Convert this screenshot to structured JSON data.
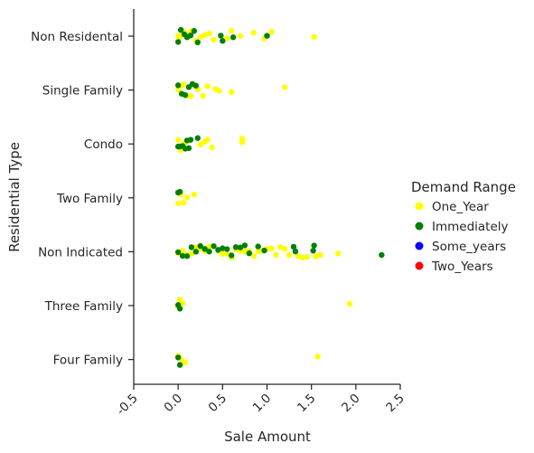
{
  "chart_data": {
    "type": "scatter",
    "style": "strip",
    "title": "",
    "xlabel": "Sale Amount",
    "ylabel": "Residential Type",
    "xlim": [
      -0.5,
      2.5
    ],
    "xticks": [
      "-0.5",
      "0.0",
      "0.5",
      "1.0",
      "1.5",
      "2.0",
      "2.5"
    ],
    "categories": [
      "Non Residental",
      "Single Family",
      "Condo",
      "Two Family",
      "Non Indicated",
      "Three Family",
      "Four Family"
    ],
    "grid": false,
    "legend": {
      "title": "Demand Range",
      "placement": "right",
      "entries": [
        "One_Year",
        "Immediately",
        "Some_years",
        "Two_Years"
      ]
    },
    "colors": {
      "One_Year": "#ffff00",
      "Immediately": "#008000",
      "Some_years": "#0000ff",
      "Two_Years": "#ff0000"
    },
    "series": [
      {
        "name": "One_Year",
        "points": [
          [
            "Non Residental",
            0.0
          ],
          [
            "Non Residental",
            0.02
          ],
          [
            "Non Residental",
            0.05
          ],
          [
            "Non Residental",
            0.08
          ],
          [
            "Non Residental",
            0.1
          ],
          [
            "Non Residental",
            0.12
          ],
          [
            "Non Residental",
            0.15
          ],
          [
            "Non Residental",
            0.2
          ],
          [
            "Non Residental",
            0.25
          ],
          [
            "Non Residental",
            0.3
          ],
          [
            "Non Residental",
            0.35
          ],
          [
            "Non Residental",
            0.4
          ],
          [
            "Non Residental",
            0.55
          ],
          [
            "Non Residental",
            0.6
          ],
          [
            "Non Residental",
            0.7
          ],
          [
            "Non Residental",
            0.85
          ],
          [
            "Non Residental",
            0.97
          ],
          [
            "Non Residental",
            1.05
          ],
          [
            "Non Residental",
            1.53
          ],
          [
            "Single Family",
            0.0
          ],
          [
            "Single Family",
            0.03
          ],
          [
            "Single Family",
            0.06
          ],
          [
            "Single Family",
            0.1
          ],
          [
            "Single Family",
            0.14
          ],
          [
            "Single Family",
            0.18
          ],
          [
            "Single Family",
            0.22
          ],
          [
            "Single Family",
            0.28
          ],
          [
            "Single Family",
            0.33
          ],
          [
            "Single Family",
            0.42
          ],
          [
            "Single Family",
            0.46
          ],
          [
            "Single Family",
            0.6
          ],
          [
            "Single Family",
            1.2
          ],
          [
            "Condo",
            0.0
          ],
          [
            "Condo",
            0.03
          ],
          [
            "Condo",
            0.07
          ],
          [
            "Condo",
            0.12
          ],
          [
            "Condo",
            0.25
          ],
          [
            "Condo",
            0.3
          ],
          [
            "Condo",
            0.33
          ],
          [
            "Condo",
            0.38
          ],
          [
            "Condo",
            0.72
          ],
          [
            "Condo",
            0.72
          ],
          [
            "Condo",
            0.72
          ],
          [
            "Two Family",
            0.0
          ],
          [
            "Two Family",
            0.03
          ],
          [
            "Two Family",
            0.06
          ],
          [
            "Two Family",
            0.1
          ],
          [
            "Two Family",
            0.18
          ],
          [
            "Non Indicated",
            0.0
          ],
          [
            "Non Indicated",
            0.05
          ],
          [
            "Non Indicated",
            0.1
          ],
          [
            "Non Indicated",
            0.15
          ],
          [
            "Non Indicated",
            0.2
          ],
          [
            "Non Indicated",
            0.25
          ],
          [
            "Non Indicated",
            0.3
          ],
          [
            "Non Indicated",
            0.35
          ],
          [
            "Non Indicated",
            0.4
          ],
          [
            "Non Indicated",
            0.45
          ],
          [
            "Non Indicated",
            0.5
          ],
          [
            "Non Indicated",
            0.55
          ],
          [
            "Non Indicated",
            0.6
          ],
          [
            "Non Indicated",
            0.65
          ],
          [
            "Non Indicated",
            0.7
          ],
          [
            "Non Indicated",
            0.75
          ],
          [
            "Non Indicated",
            0.8
          ],
          [
            "Non Indicated",
            0.85
          ],
          [
            "Non Indicated",
            0.9
          ],
          [
            "Non Indicated",
            0.95
          ],
          [
            "Non Indicated",
            1.0
          ],
          [
            "Non Indicated",
            1.05
          ],
          [
            "Non Indicated",
            1.1
          ],
          [
            "Non Indicated",
            1.15
          ],
          [
            "Non Indicated",
            1.2
          ],
          [
            "Non Indicated",
            1.25
          ],
          [
            "Non Indicated",
            1.35
          ],
          [
            "Non Indicated",
            1.4
          ],
          [
            "Non Indicated",
            1.45
          ],
          [
            "Non Indicated",
            1.55
          ],
          [
            "Non Indicated",
            1.6
          ],
          [
            "Non Indicated",
            1.8
          ],
          [
            "Three Family",
            0.0
          ],
          [
            "Three Family",
            0.02
          ],
          [
            "Three Family",
            0.05
          ],
          [
            "Three Family",
            1.93
          ],
          [
            "Four Family",
            0.0
          ],
          [
            "Four Family",
            0.02
          ],
          [
            "Four Family",
            0.05
          ],
          [
            "Four Family",
            0.08
          ],
          [
            "Four Family",
            1.57
          ]
        ]
      },
      {
        "name": "Immediately",
        "points": [
          [
            "Non Residental",
            0.0
          ],
          [
            "Non Residental",
            0.03
          ],
          [
            "Non Residental",
            0.07
          ],
          [
            "Non Residental",
            0.1
          ],
          [
            "Non Residental",
            0.14
          ],
          [
            "Non Residental",
            0.18
          ],
          [
            "Non Residental",
            0.22
          ],
          [
            "Non Residental",
            0.48
          ],
          [
            "Non Residental",
            0.5
          ],
          [
            "Non Residental",
            0.62
          ],
          [
            "Non Residental",
            1.0
          ],
          [
            "Single Family",
            0.0
          ],
          [
            "Single Family",
            0.04
          ],
          [
            "Single Family",
            0.08
          ],
          [
            "Single Family",
            0.12
          ],
          [
            "Single Family",
            0.16
          ],
          [
            "Single Family",
            0.2
          ],
          [
            "Condo",
            0.0
          ],
          [
            "Condo",
            0.02
          ],
          [
            "Condo",
            0.05
          ],
          [
            "Condo",
            0.08
          ],
          [
            "Condo",
            0.1
          ],
          [
            "Condo",
            0.12
          ],
          [
            "Condo",
            0.14
          ],
          [
            "Condo",
            0.22
          ],
          [
            "Two Family",
            0.0
          ],
          [
            "Two Family",
            0.02
          ],
          [
            "Non Indicated",
            0.0
          ],
          [
            "Non Indicated",
            0.05
          ],
          [
            "Non Indicated",
            0.1
          ],
          [
            "Non Indicated",
            0.15
          ],
          [
            "Non Indicated",
            0.2
          ],
          [
            "Non Indicated",
            0.25
          ],
          [
            "Non Indicated",
            0.3
          ],
          [
            "Non Indicated",
            0.35
          ],
          [
            "Non Indicated",
            0.4
          ],
          [
            "Non Indicated",
            0.45
          ],
          [
            "Non Indicated",
            0.5
          ],
          [
            "Non Indicated",
            0.55
          ],
          [
            "Non Indicated",
            0.6
          ],
          [
            "Non Indicated",
            0.65
          ],
          [
            "Non Indicated",
            0.7
          ],
          [
            "Non Indicated",
            0.75
          ],
          [
            "Non Indicated",
            0.8
          ],
          [
            "Non Indicated",
            0.9
          ],
          [
            "Non Indicated",
            0.97
          ],
          [
            "Non Indicated",
            1.3
          ],
          [
            "Non Indicated",
            1.32
          ],
          [
            "Non Indicated",
            1.52
          ],
          [
            "Non Indicated",
            1.53
          ],
          [
            "Non Indicated",
            2.29
          ],
          [
            "Three Family",
            0.0
          ],
          [
            "Three Family",
            0.02
          ],
          [
            "Four Family",
            0.0
          ],
          [
            "Four Family",
            0.02
          ]
        ]
      },
      {
        "name": "Some_years",
        "points": []
      },
      {
        "name": "Two_Years",
        "points": []
      }
    ]
  }
}
